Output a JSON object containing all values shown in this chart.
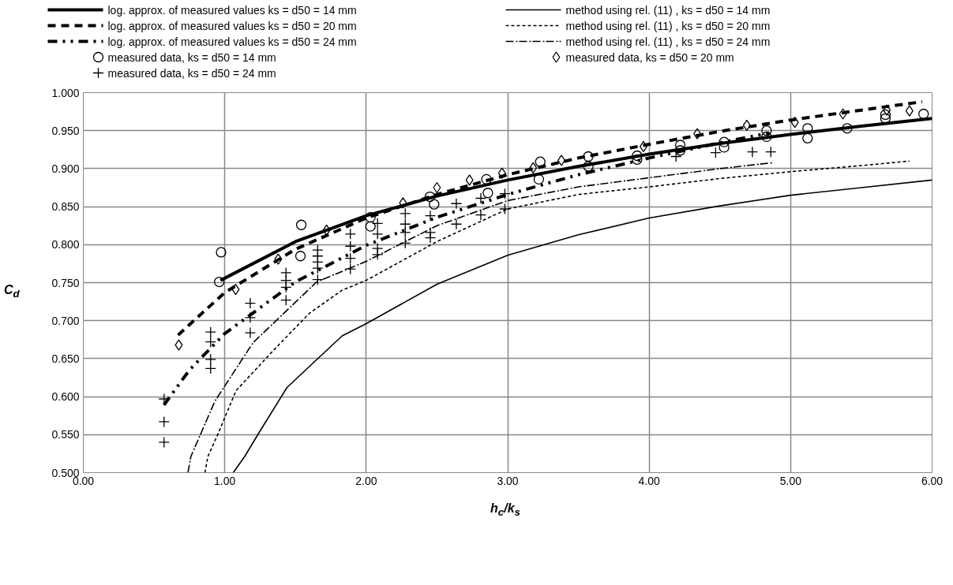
{
  "chart_data": {
    "type": "line",
    "xlabel": "h$_{c}$/k$_{s}$",
    "ylabel": "C$_{d}$",
    "xlim": [
      0,
      6
    ],
    "xticks": [
      {
        "value": 0,
        "label": "0.00"
      },
      {
        "value": 1,
        "label": "1.00"
      },
      {
        "value": 2,
        "label": "2.00"
      },
      {
        "value": 3,
        "label": "3.00"
      },
      {
        "value": 4,
        "label": "4.00"
      },
      {
        "value": 5,
        "label": "5.00"
      },
      {
        "value": 6,
        "label": "6.00"
      }
    ],
    "ylim": [
      0.5,
      1.0
    ],
    "yticks": [
      {
        "value": 0.5,
        "label": "0.500"
      },
      {
        "value": 0.55,
        "label": "0.550"
      },
      {
        "value": 0.6,
        "label": "0.600"
      },
      {
        "value": 0.65,
        "label": "0.650"
      },
      {
        "value": 0.7,
        "label": "0.700"
      },
      {
        "value": 0.75,
        "label": "0.750"
      },
      {
        "value": 0.8,
        "label": "0.800"
      },
      {
        "value": 0.85,
        "label": "0.850"
      },
      {
        "value": 0.9,
        "label": "0.900"
      },
      {
        "value": 0.95,
        "label": "0.950"
      },
      {
        "value": 1.0,
        "label": "1.000"
      }
    ],
    "grid": true,
    "legend": "top",
    "series": [
      {
        "name": "log. approx. of measured values ks = d50 = 14 mm",
        "line_style": "solid",
        "color": "#000000",
        "x": [
          0.97,
          1.5,
          2,
          2.5,
          3,
          3.5,
          4,
          4.5,
          5,
          5.5,
          6
        ],
        "values": [
          0.753,
          0.804,
          0.838,
          0.864,
          0.885,
          0.903,
          0.919,
          0.933,
          0.945,
          0.956,
          0.966
        ]
      },
      {
        "name": "method using rel. (11) , ks = d50 = 14 mm",
        "line_style": "solid",
        "color": "#000000",
        "x": [
          1.06,
          1.14,
          1.25,
          1.44,
          1.6,
          1.83,
          2,
          2.5,
          3,
          3.5,
          4,
          4.5,
          5,
          5.5,
          6
        ],
        "values": [
          0.5,
          0.521,
          0.555,
          0.612,
          0.64,
          0.68,
          0.696,
          0.748,
          0.786,
          0.813,
          0.835,
          0.851,
          0.865,
          0.875,
          0.885
        ]
      },
      {
        "name": "log. approx. of measured values ks = d50 = 20 mm",
        "line_style": "dashed",
        "color": "#000000",
        "x": [
          0.67,
          1,
          1.5,
          2,
          2.5,
          3,
          3.5,
          4,
          4.5,
          5,
          5.5,
          5.93
        ],
        "values": [
          0.681,
          0.737,
          0.794,
          0.835,
          0.866,
          0.892,
          0.914,
          0.932,
          0.949,
          0.964,
          0.977,
          0.988
        ]
      },
      {
        "name": "method using rel. (11) , ks = d50 = 20 mm",
        "line_style": "dashed",
        "color": "#000000",
        "x": [
          0.86,
          0.88,
          0.95,
          1.08,
          1.36,
          1.6,
          1.83,
          2,
          2.5,
          3,
          3.5,
          4,
          4.5,
          5,
          5.5,
          5.84
        ],
        "values": [
          0.5,
          0.521,
          0.55,
          0.608,
          0.664,
          0.71,
          0.74,
          0.753,
          0.804,
          0.847,
          0.866,
          0.876,
          0.887,
          0.896,
          0.904,
          0.91
        ]
      },
      {
        "name": "log. approx. of measured values ks = d50 = 24 mm",
        "line_style": "dashdotdot",
        "color": "#000000",
        "x": [
          0.57,
          0.75,
          1,
          1.5,
          2,
          2.5,
          3,
          3.5,
          4,
          4.5,
          4.85
        ],
        "values": [
          0.589,
          0.635,
          0.683,
          0.751,
          0.799,
          0.836,
          0.866,
          0.892,
          0.914,
          0.934,
          0.947
        ]
      },
      {
        "name": "method using rel. (11) , ks = d50 = 24 mm",
        "line_style": "dashdot",
        "color": "#000000",
        "x": [
          0.74,
          0.76,
          0.93,
          1.2,
          1.65,
          2,
          2.5,
          3,
          3.5,
          4,
          4.5,
          4.88
        ],
        "values": [
          0.5,
          0.521,
          0.594,
          0.671,
          0.751,
          0.778,
          0.825,
          0.858,
          0.876,
          0.888,
          0.9,
          0.908
        ]
      },
      {
        "name": "measured data, ks = d50 = 14 mm",
        "type": "scatter",
        "marker": "circle",
        "color": "#000000",
        "x": [
          0.974,
          0.961,
          1.541,
          1.535,
          2.03,
          2.03,
          2.45,
          2.48,
          2.85,
          2.86,
          3.23,
          3.22,
          3.57,
          3.57,
          3.915,
          3.915,
          4.22,
          4.22,
          4.53,
          4.53,
          4.83,
          4.83,
          5.12,
          5.12,
          5.4,
          5.67,
          5.67,
          5.94
        ],
        "values": [
          0.79,
          0.751,
          0.826,
          0.785,
          0.836,
          0.824,
          0.863,
          0.853,
          0.886,
          0.868,
          0.909,
          0.886,
          0.916,
          0.903,
          0.917,
          0.912,
          0.931,
          0.924,
          0.935,
          0.928,
          0.95,
          0.942,
          0.953,
          0.94,
          0.953,
          0.971,
          0.966,
          0.972
        ]
      },
      {
        "name": "measured data, ks = d50 = 20 mm",
        "type": "scatter",
        "marker": "diamond",
        "color": "#000000",
        "x": [
          0.675,
          1.077,
          1.378,
          1.72,
          2.26,
          2.5,
          2.73,
          2.96,
          3.18,
          3.38,
          3.96,
          4.34,
          4.69,
          5.03,
          5.37,
          5.68,
          5.84
        ],
        "values": [
          0.668,
          0.741,
          0.781,
          0.819,
          0.855,
          0.875,
          0.885,
          0.894,
          0.901,
          0.911,
          0.929,
          0.946,
          0.957,
          0.961,
          0.972,
          0.977,
          0.976
        ]
      },
      {
        "name": "measured data, ks = d50 = 24 mm",
        "type": "scatter",
        "marker": "cross",
        "color": "#000000",
        "x": [
          0.571,
          0.571,
          0.571,
          0.9,
          0.9,
          0.9,
          0.9,
          1.18,
          1.18,
          1.18,
          1.433,
          1.433,
          1.433,
          1.433,
          1.657,
          1.657,
          1.657,
          1.657,
          1.657,
          1.888,
          1.888,
          1.888,
          1.888,
          2.08,
          2.08,
          2.08,
          2.08,
          2.276,
          2.276,
          2.276,
          2.276,
          2.453,
          2.453,
          2.453,
          2.637,
          2.637,
          2.81,
          2.81,
          2.98,
          2.98,
          4.19,
          4.47,
          4.73,
          4.86
        ],
        "values": [
          0.597,
          0.567,
          0.54,
          0.685,
          0.672,
          0.649,
          0.637,
          0.723,
          0.704,
          0.684,
          0.763,
          0.753,
          0.744,
          0.727,
          0.793,
          0.785,
          0.777,
          0.769,
          0.754,
          0.814,
          0.798,
          0.782,
          0.768,
          0.828,
          0.814,
          0.795,
          0.787,
          0.841,
          0.827,
          0.816,
          0.802,
          0.838,
          0.816,
          0.809,
          0.854,
          0.827,
          0.861,
          0.839,
          0.867,
          0.847,
          0.916,
          0.921,
          0.922,
          0.922
        ]
      }
    ]
  }
}
